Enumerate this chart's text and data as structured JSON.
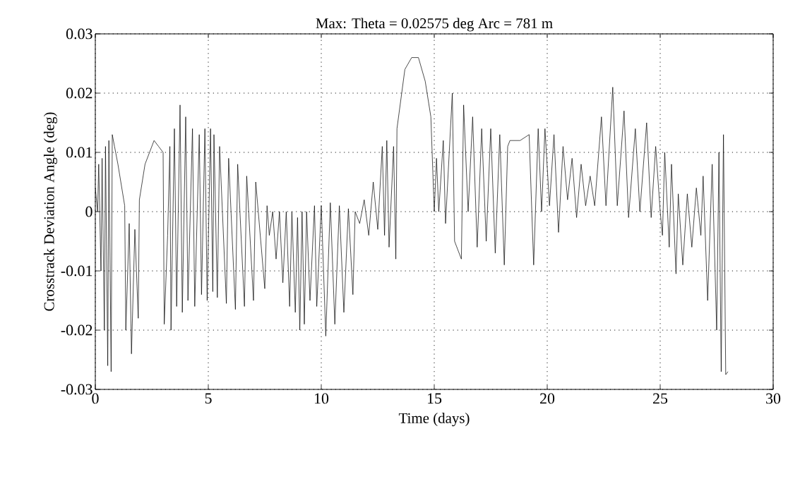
{
  "chart_data": {
    "type": "line",
    "title": "Max: Theta = 0.02575 deg  Arc = 781 m",
    "xlabel": "Time  (days)",
    "ylabel": "Crosstrack Deviation Angle  (deg)",
    "xlim": [
      0,
      30
    ],
    "ylim": [
      -0.03,
      0.03
    ],
    "xticks": [
      0,
      5,
      10,
      15,
      20,
      25,
      30
    ],
    "yticks": [
      -0.03,
      -0.02,
      -0.01,
      0,
      0.01,
      0.02,
      0.03
    ],
    "grid": true,
    "marker": "none",
    "line_style": "solid",
    "series": [
      {
        "color": "#000000",
        "x": [
          0.0,
          0.1,
          0.15,
          0.25,
          0.3,
          0.4,
          0.45,
          0.55,
          0.6,
          0.7,
          0.75,
          0.85,
          1.0,
          1.3,
          1.35,
          1.5,
          1.6,
          1.75,
          1.9,
          1.95,
          2.2,
          2.6,
          2.8,
          3.0,
          3.05,
          3.2,
          3.3,
          3.35,
          3.5,
          3.6,
          3.75,
          3.85,
          4.0,
          4.1,
          4.3,
          4.4,
          4.6,
          4.7,
          4.85,
          4.95,
          5.1,
          5.2,
          5.25,
          5.4,
          5.5,
          5.8,
          5.9,
          6.2,
          6.3,
          6.6,
          6.7,
          7.0,
          7.1,
          7.5,
          7.6,
          7.7,
          7.85,
          8.0,
          8.15,
          8.3,
          8.45,
          8.6,
          8.7,
          8.85,
          8.95,
          9.05,
          9.15,
          9.25,
          9.35,
          9.5,
          9.7,
          9.8,
          10.0,
          10.2,
          10.4,
          10.6,
          10.8,
          11.0,
          11.2,
          11.4,
          11.5,
          11.7,
          11.9,
          12.1,
          12.3,
          12.5,
          12.7,
          12.8,
          12.9,
          13.0,
          13.2,
          13.3,
          13.35,
          13.7,
          14.0,
          14.3,
          14.6,
          14.85,
          15.0,
          15.1,
          15.2,
          15.4,
          15.5,
          15.8,
          15.9,
          16.2,
          16.3,
          16.5,
          16.7,
          16.9,
          17.1,
          17.3,
          17.5,
          17.7,
          17.9,
          18.1,
          18.25,
          18.35,
          18.8,
          19.2,
          19.4,
          19.6,
          19.75,
          19.9,
          20.1,
          20.3,
          20.5,
          20.7,
          20.9,
          21.1,
          21.3,
          21.5,
          21.7,
          21.9,
          22.1,
          22.4,
          22.6,
          22.9,
          23.1,
          23.4,
          23.6,
          23.9,
          24.1,
          24.4,
          24.6,
          24.8,
          25.0,
          25.1,
          25.2,
          25.4,
          25.5,
          25.7,
          25.8,
          26.0,
          26.2,
          26.4,
          26.6,
          26.8,
          26.9,
          27.1,
          27.3,
          27.5,
          27.6,
          27.7,
          27.8,
          27.9,
          28.0
        ],
        "values": [
          0.004,
          0.0,
          0.008,
          -0.01,
          0.009,
          -0.02,
          0.011,
          -0.026,
          0.012,
          -0.027,
          0.013,
          0.011,
          0.008,
          0.001,
          -0.02,
          -0.002,
          -0.024,
          -0.003,
          -0.018,
          0.002,
          0.008,
          0.012,
          0.011,
          0.01,
          -0.019,
          -0.004,
          0.011,
          -0.02,
          0.014,
          -0.016,
          0.018,
          -0.017,
          0.016,
          -0.015,
          0.014,
          -0.016,
          0.013,
          -0.014,
          0.014,
          -0.015,
          0.014,
          -0.0135,
          0.013,
          -0.0145,
          0.011,
          -0.0155,
          0.009,
          -0.0165,
          0.008,
          -0.016,
          0.006,
          -0.015,
          0.005,
          -0.013,
          0.001,
          -0.004,
          0.0,
          -0.008,
          0.0,
          -0.012,
          0.0,
          -0.016,
          0.0,
          -0.017,
          -0.001,
          -0.02,
          0.0,
          -0.019,
          0.0,
          -0.015,
          0.001,
          -0.016,
          0.001,
          -0.021,
          0.0015,
          -0.019,
          0.001,
          -0.017,
          0.0005,
          -0.014,
          0.0,
          -0.002,
          0.002,
          -0.004,
          0.005,
          -0.003,
          0.011,
          -0.004,
          0.012,
          -0.006,
          0.011,
          -0.008,
          0.014,
          0.024,
          0.026,
          0.026,
          0.022,
          0.016,
          0.0,
          0.009,
          0.0,
          0.012,
          -0.002,
          0.02,
          -0.005,
          -0.008,
          0.018,
          0.0,
          0.016,
          -0.006,
          0.014,
          -0.005,
          0.014,
          -0.007,
          0.013,
          -0.009,
          0.011,
          0.012,
          0.012,
          0.013,
          -0.009,
          0.014,
          0.0,
          0.014,
          0.001,
          0.013,
          -0.0035,
          0.011,
          0.002,
          0.009,
          -0.001,
          0.008,
          0.001,
          0.006,
          0.001,
          0.016,
          0.001,
          0.021,
          0.001,
          0.017,
          -0.001,
          0.014,
          0.0,
          0.015,
          -0.001,
          0.011,
          0.0,
          -0.004,
          0.01,
          -0.006,
          0.008,
          -0.0105,
          0.003,
          -0.009,
          0.003,
          -0.006,
          0.004,
          -0.004,
          0.006,
          -0.015,
          0.008,
          -0.02,
          0.01,
          -0.027,
          0.013,
          -0.0275,
          -0.027
        ]
      }
    ]
  }
}
